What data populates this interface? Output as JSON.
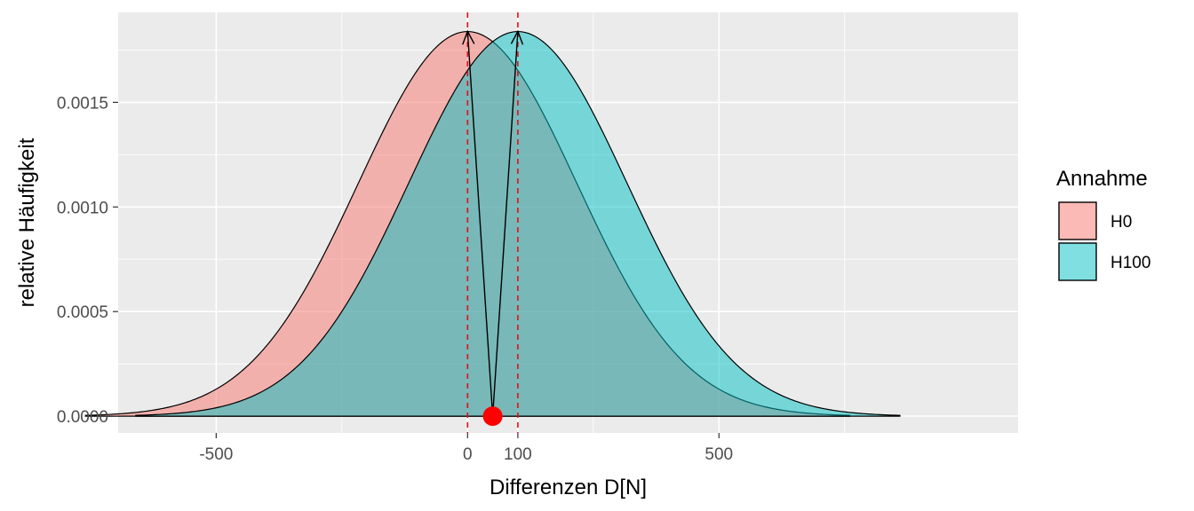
{
  "chart_data": {
    "type": "area",
    "xlabel": "Differenzen D[N]",
    "ylabel": "relative Häufigkeit",
    "xlim": [
      -695,
      1095
    ],
    "ylim": [
      -8e-05,
      0.00193
    ],
    "x_ticks": [
      -500,
      0,
      100,
      500
    ],
    "x_tick_labels": [
      "-500",
      "0",
      "100",
      "500"
    ],
    "x_minor_grid": [
      -250,
      250,
      750
    ],
    "y_ticks": [
      0.0,
      0.0005,
      0.001,
      0.0015
    ],
    "y_tick_labels": [
      "0.0000",
      "0.0005",
      "0.0010",
      "0.0015"
    ],
    "y_minor_grid": [
      0.00025,
      0.00075,
      0.00125,
      0.00175
    ],
    "grid": true,
    "legend": {
      "title": "Annahme",
      "position": "right",
      "entries": [
        {
          "label": "H0",
          "color": "#F8766D"
        },
        {
          "label": "H100",
          "color": "#00BFC4"
        }
      ]
    },
    "series": [
      {
        "name": "H0",
        "distribution": "normal",
        "mean": 0,
        "sd": 217,
        "x_range": [
          -760,
          760
        ],
        "color": "#F8766D",
        "fill_opacity": 0.5
      },
      {
        "name": "H100",
        "distribution": "normal",
        "mean": 100,
        "sd": 217,
        "x_range": [
          -660,
          860
        ],
        "color": "#00BFC4",
        "fill_opacity": 0.5
      }
    ],
    "reference_lines": [
      {
        "orientation": "vertical",
        "x": 0,
        "color": "#e0101a",
        "style": "dashed"
      },
      {
        "orientation": "vertical",
        "x": 100,
        "color": "#e0101a",
        "style": "dashed"
      }
    ],
    "point": {
      "x": 50,
      "y": 0,
      "color": "#ff0000"
    },
    "arrows": [
      {
        "from": [
          50,
          0
        ],
        "to": [
          0,
          0.00184
        ]
      },
      {
        "from": [
          50,
          0
        ],
        "to": [
          100,
          0.00184
        ]
      }
    ],
    "colors": {
      "panel": "#EBEBEB",
      "grid": "#ffffff",
      "outline": "#000000"
    }
  }
}
